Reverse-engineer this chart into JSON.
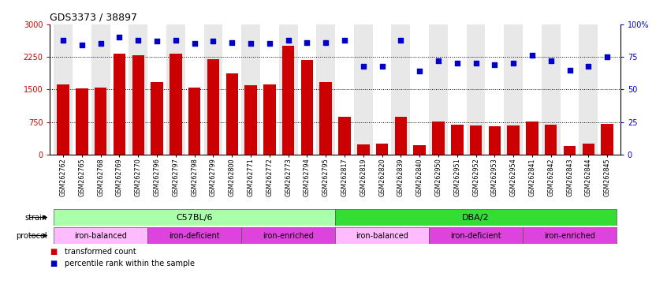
{
  "title": "GDS3373 / 38897",
  "samples": [
    "GSM262762",
    "GSM262765",
    "GSM262768",
    "GSM262769",
    "GSM262770",
    "GSM262796",
    "GSM262797",
    "GSM262798",
    "GSM262799",
    "GSM262800",
    "GSM262771",
    "GSM262772",
    "GSM262773",
    "GSM262794",
    "GSM262795",
    "GSM262817",
    "GSM262819",
    "GSM262820",
    "GSM262839",
    "GSM262840",
    "GSM262950",
    "GSM262951",
    "GSM262952",
    "GSM262953",
    "GSM262954",
    "GSM262841",
    "GSM262842",
    "GSM262843",
    "GSM262844",
    "GSM262845"
  ],
  "bar_values": [
    1620,
    1520,
    1540,
    2320,
    2290,
    1670,
    2320,
    1550,
    2190,
    1870,
    1590,
    1610,
    2500,
    2180,
    1660,
    870,
    230,
    250,
    870,
    210,
    760,
    680,
    670,
    650,
    670,
    760,
    680,
    200,
    260,
    700
  ],
  "percentile_values": [
    88,
    84,
    85,
    90,
    88,
    87,
    88,
    85,
    87,
    86,
    85,
    85,
    88,
    86,
    86,
    88,
    68,
    68,
    88,
    64,
    72,
    70,
    70,
    69,
    70,
    76,
    72,
    65,
    68,
    75
  ],
  "bar_color": "#cc0000",
  "percentile_color": "#0000cc",
  "ylim_left": [
    0,
    3000
  ],
  "ylim_right": [
    0,
    100
  ],
  "yticks_left": [
    0,
    750,
    1500,
    2250,
    3000
  ],
  "yticks_right": [
    0,
    25,
    50,
    75,
    100
  ],
  "strain_groups": [
    {
      "label": "C57BL/6",
      "start": 0,
      "end": 15,
      "color": "#aaffaa"
    },
    {
      "label": "DBA/2",
      "start": 15,
      "end": 30,
      "color": "#33dd33"
    }
  ],
  "protocol_groups": [
    {
      "label": "iron-balanced",
      "start": 0,
      "end": 5,
      "color": "#ffbbff"
    },
    {
      "label": "iron-deficient",
      "start": 5,
      "end": 10,
      "color": "#dd44dd"
    },
    {
      "label": "iron-enriched",
      "start": 10,
      "end": 15,
      "color": "#dd44dd"
    },
    {
      "label": "iron-balanced",
      "start": 15,
      "end": 20,
      "color": "#ffbbff"
    },
    {
      "label": "iron-deficient",
      "start": 20,
      "end": 25,
      "color": "#dd44dd"
    },
    {
      "label": "iron-enriched",
      "start": 25,
      "end": 30,
      "color": "#dd44dd"
    }
  ],
  "legend_items": [
    {
      "label": "transformed count",
      "color": "#cc0000"
    },
    {
      "label": "percentile rank within the sample",
      "color": "#0000cc"
    }
  ],
  "bg_even": "#e8e8e8",
  "bg_odd": "#ffffff",
  "grid_color": "black",
  "grid_linestyle": ":",
  "grid_linewidth": 0.7,
  "tick_fontsize": 7,
  "sample_fontsize": 5.8,
  "title_fontsize": 9,
  "annotation_fontsize": 7,
  "bar_width": 0.65
}
